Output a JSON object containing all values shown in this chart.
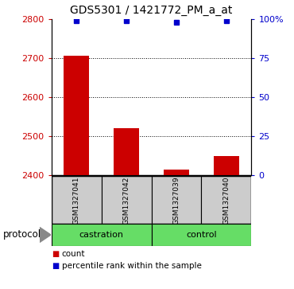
{
  "title": "GDS5301 / 1421772_PM_a_at",
  "samples": [
    "GSM1327041",
    "GSM1327042",
    "GSM1327039",
    "GSM1327040"
  ],
  "groups": [
    "castration",
    "castration",
    "control",
    "control"
  ],
  "counts": [
    2706,
    2519,
    2413,
    2449
  ],
  "percentile_ranks": [
    99,
    99,
    98,
    99
  ],
  "ylim_left": [
    2400,
    2800
  ],
  "ylim_right": [
    0,
    100
  ],
  "yticks_left": [
    2400,
    2500,
    2600,
    2700,
    2800
  ],
  "yticks_right": [
    0,
    25,
    50,
    75,
    100
  ],
  "yticks_right_labels": [
    "0",
    "25",
    "50",
    "75",
    "100%"
  ],
  "bar_color": "#cc0000",
  "percentile_color": "#0000cc",
  "sample_box_color": "#cccccc",
  "group_color": "#66dd66",
  "group_label_castration": "castration",
  "group_label_control": "control",
  "protocol_label": "protocol",
  "legend_count": "count",
  "legend_percentile": "percentile rank within the sample",
  "title_fontsize": 10,
  "tick_fontsize": 8,
  "label_fontsize": 8,
  "sample_fontsize": 6.5,
  "group_fontsize": 8,
  "dotted_lines": [
    2500,
    2600,
    2700
  ],
  "bar_width": 0.5
}
